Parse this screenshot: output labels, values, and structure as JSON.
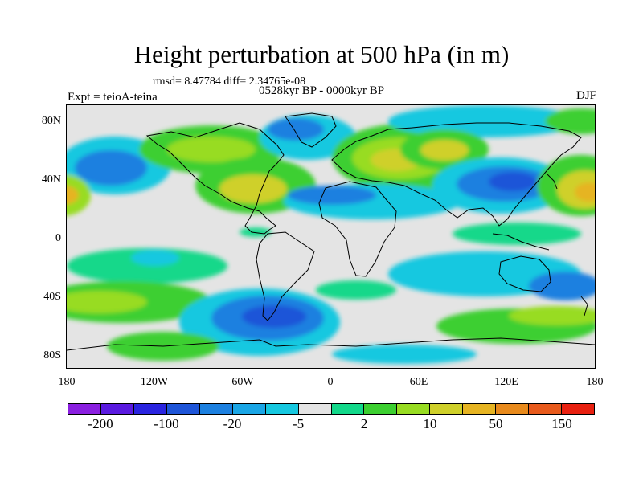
{
  "title": "Height perturbation at 500 hPa (in m)",
  "stats_line": "rmsd= 8.47784 diff= 2.34765e-08",
  "period_line": "0528kyr BP - 0000kyr BP",
  "experiment": "Expt = teioA-teina",
  "season": "DJF",
  "y_ticks": [
    "80N",
    "40N",
    "0",
    "40S",
    "80S"
  ],
  "x_ticks": [
    "180",
    "120W",
    "60W",
    "0",
    "60E",
    "120E",
    "180"
  ],
  "colorbar": {
    "colors": [
      "#8a1fe0",
      "#5a1ae0",
      "#2a24e0",
      "#1e55d8",
      "#1c80e0",
      "#1aa6e6",
      "#16c8e0",
      "#e4e4e4",
      "#12d88a",
      "#3ccf30",
      "#98dc22",
      "#cfd02a",
      "#e6b422",
      "#e88a1c",
      "#e85a1c",
      "#e82010"
    ],
    "labels": [
      "-200",
      "-100",
      "-20",
      "-5",
      "2",
      "10",
      "50",
      "150"
    ]
  },
  "chart_data": {
    "type": "heatmap",
    "title": "Height perturbation at 500 hPa (in m)",
    "units": "m",
    "level": "500 hPa",
    "lon_range": [
      -180,
      180
    ],
    "lat_range": [
      -90,
      90
    ],
    "legend_levels": [
      -200,
      -100,
      -20,
      -5,
      2,
      10,
      50,
      150
    ],
    "anomalies": [
      {
        "region": "North Pacific",
        "lon": -150,
        "lat": 45,
        "sign": "negative",
        "approx_value": -20
      },
      {
        "region": "Northeast Pacific / western North America",
        "lon": -125,
        "lat": 33,
        "sign": "positive",
        "approx_value": 10
      },
      {
        "region": "Eastern North America",
        "lon": -85,
        "lat": 35,
        "sign": "positive",
        "approx_value": 30
      },
      {
        "region": "North Atlantic / Eurasia",
        "lon": 5,
        "lat": 50,
        "sign": "positive",
        "approx_value": 30
      },
      {
        "region": "North Africa / Mediterranean",
        "lon": 0,
        "lat": 25,
        "sign": "negative",
        "approx_value": -10
      },
      {
        "region": "Central Asia",
        "lon": 70,
        "lat": 55,
        "sign": "positive",
        "approx_value": 30
      },
      {
        "region": "East Asia",
        "lon": 110,
        "lat": 35,
        "sign": "negative",
        "approx_value": -20
      },
      {
        "region": "Western North Pacific",
        "lon": 165,
        "lat": 35,
        "sign": "positive",
        "approx_value": 40
      },
      {
        "region": "Southern Ocean near Drake Passage",
        "lon": -55,
        "lat": -55,
        "sign": "negative",
        "approx_value": -25
      },
      {
        "region": "South Atlantic / Indian Ocean",
        "lon": 40,
        "lat": -25,
        "sign": "negative",
        "approx_value": -10
      },
      {
        "region": "South Pacific",
        "lon": -140,
        "lat": -45,
        "sign": "positive",
        "approx_value": 25
      },
      {
        "region": "South Indian / Southern Ocean",
        "lon": 130,
        "lat": -55,
        "sign": "positive",
        "approx_value": 25
      },
      {
        "region": "Southern Australia",
        "lon": 130,
        "lat": -35,
        "sign": "negative",
        "approx_value": -10
      }
    ]
  }
}
